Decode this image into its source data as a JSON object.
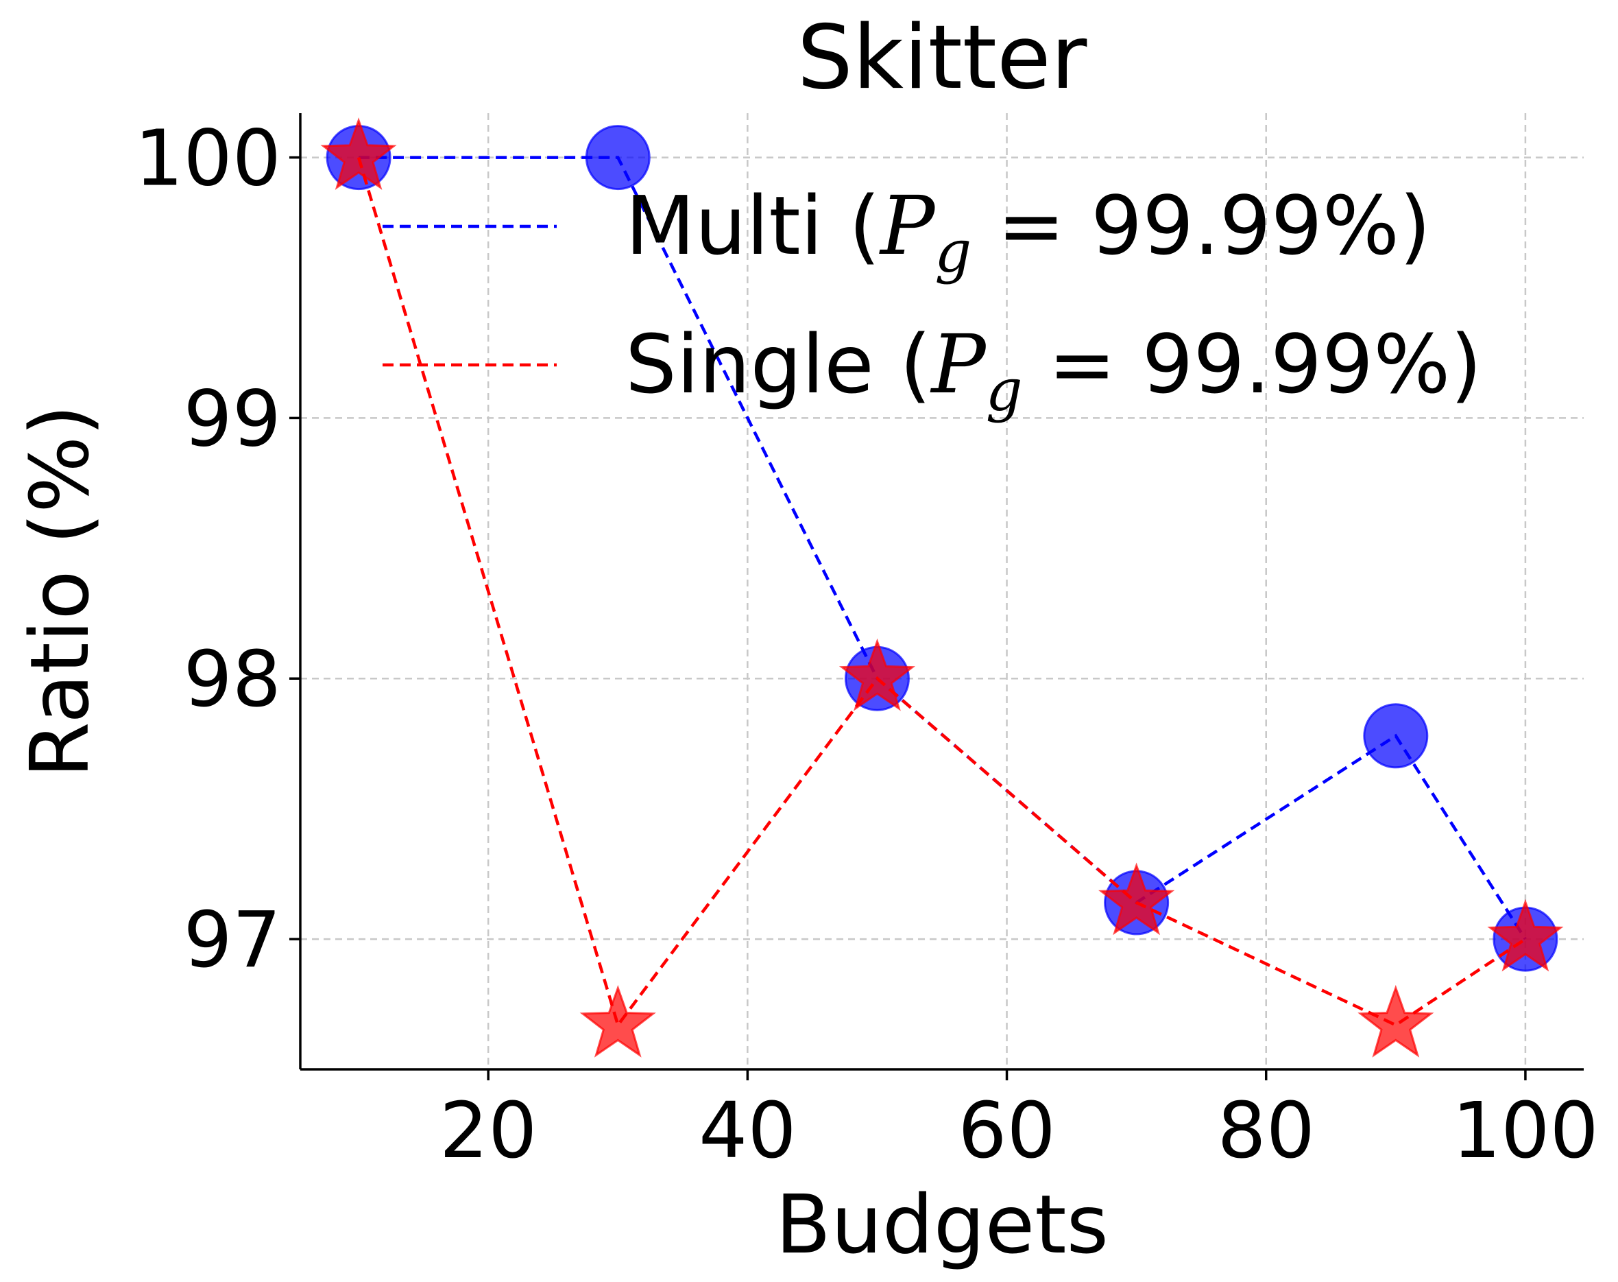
{
  "chart_data": {
    "type": "line",
    "title": "Skitter",
    "xlabel": "Budgets",
    "ylabel": "Ratio (%)",
    "xlim": [
      5.5,
      104.5
    ],
    "ylim": [
      96.5,
      100.17
    ],
    "xticks": [
      20,
      40,
      60,
      80,
      100
    ],
    "yticks": [
      97,
      98,
      99,
      100
    ],
    "grid": true,
    "legend_position": "upper-right",
    "x": [
      10,
      30,
      50,
      70,
      90,
      100
    ],
    "series": [
      {
        "name": "Multi",
        "legend_suffix": "99.99%",
        "marker": "circle",
        "color": "#0000ff",
        "line_style": "dashed",
        "values": [
          100.0,
          100.0,
          98.0,
          97.14,
          97.78,
          97.0
        ]
      },
      {
        "name": "Single",
        "legend_suffix": "99.99%",
        "marker": "star",
        "color": "#ff0000",
        "line_style": "dashed",
        "values": [
          100.0,
          96.67,
          98.0,
          97.14,
          96.67,
          97.0
        ]
      }
    ],
    "legend_symbol": {
      "var": "P",
      "sub": "g"
    }
  }
}
